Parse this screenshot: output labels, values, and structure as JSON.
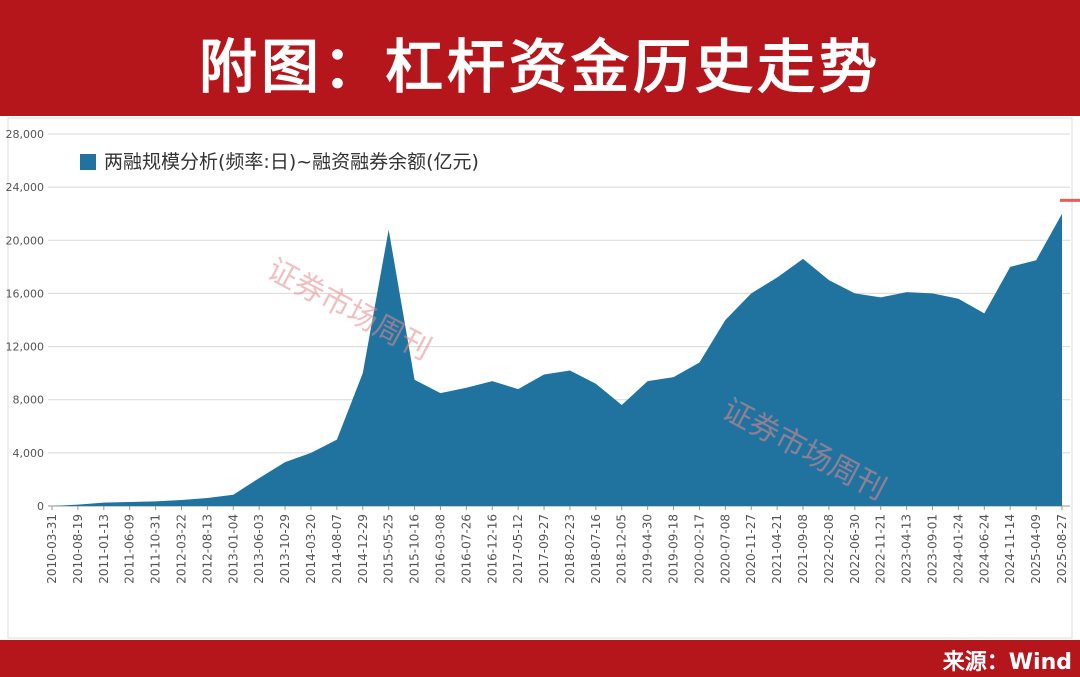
{
  "title": "附图：杠杆资金历史走势",
  "source": "来源：Wind",
  "chart_data": {
    "type": "area",
    "watermark": "证券市场周刊",
    "categories": [
      "2010-03-31",
      "2010-08-19",
      "2011-01-13",
      "2011-06-09",
      "2011-10-31",
      "2012-03-22",
      "2012-08-13",
      "2013-01-04",
      "2013-06-03",
      "2013-10-29",
      "2014-03-20",
      "2014-08-07",
      "2014-12-29",
      "2015-05-25",
      "2015-10-16",
      "2016-03-08",
      "2016-07-26",
      "2016-12-16",
      "2017-05-12",
      "2017-09-27",
      "2018-02-23",
      "2018-07-16",
      "2018-12-05",
      "2019-04-30",
      "2019-09-18",
      "2020-02-17",
      "2020-07-08",
      "2020-11-27",
      "2021-04-21",
      "2021-09-08",
      "2022-02-08",
      "2022-06-30",
      "2022-11-21",
      "2023-04-13",
      "2023-09-01",
      "2024-01-24",
      "2024-06-24",
      "2024-11-14",
      "2025-04-09",
      "2025-08-27"
    ],
    "series": [
      {
        "name": "两融规模分析(频率:日)~融资融券余额(亿元)",
        "color": "#21739f",
        "values": [
          0,
          100,
          250,
          300,
          350,
          450,
          600,
          850,
          2100,
          3300,
          4000,
          5000,
          10000,
          20800,
          9500,
          8500,
          8900,
          9400,
          8800,
          9900,
          10200,
          9200,
          7600,
          9400,
          9700,
          10800,
          14000,
          16000,
          17200,
          18600,
          17000,
          16000,
          15700,
          16100,
          16000,
          15600,
          14500,
          18000,
          18500,
          22000
        ]
      }
    ],
    "reference_line": {
      "value": 23000,
      "color": "#f25a5a"
    },
    "ylim": [
      0,
      28000
    ],
    "yticks": [
      {
        "value": 0,
        "label": "0"
      },
      {
        "value": 4000,
        "label": "4,000"
      },
      {
        "value": 8000,
        "label": "8,000"
      },
      {
        "value": 12000,
        "label": "12,000"
      },
      {
        "value": 16000,
        "label": "16,000"
      },
      {
        "value": 20000,
        "label": "20,000"
      },
      {
        "value": 24000,
        "label": "24,000"
      },
      {
        "value": 28000,
        "label": "28,000"
      }
    ],
    "grid": true
  }
}
